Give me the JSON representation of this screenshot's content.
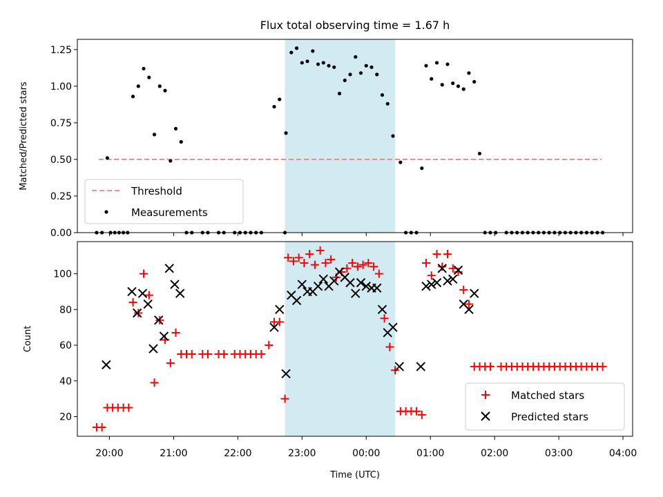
{
  "chart_data": [
    {
      "type": "scatter",
      "title": "Flux total observing time = 1.67 h",
      "xlabel": "",
      "ylabel": "Matched/Predicted stars",
      "xlim": [
        19.5,
        4.15
      ],
      "ylim": [
        0,
        1.32
      ],
      "yticks": [
        {
          "value": 0.0,
          "label": "0.00"
        },
        {
          "value": 0.25,
          "label": "0.25"
        },
        {
          "value": 0.5,
          "label": "0.50"
        },
        {
          "value": 0.75,
          "label": "0.75"
        },
        {
          "value": 1.0,
          "label": "1.00"
        },
        {
          "value": 1.25,
          "label": "1.25"
        }
      ],
      "shaded_span": {
        "start": "22:44",
        "end": "00:27",
        "color": "#add8e6"
      },
      "threshold": {
        "name": "Threshold",
        "value": 0.5,
        "from": "19:50",
        "to": "03:40",
        "color": "#ff7f7f"
      },
      "legend": {
        "placement": "lower left",
        "entries": [
          "Threshold",
          "Measurements"
        ]
      },
      "series": [
        {
          "name": "Measurements",
          "color": "#000000",
          "points": [
            [
              "19:48",
              0
            ],
            [
              "19:53",
              0
            ],
            [
              "19:58",
              0.51
            ],
            [
              "20:01",
              0
            ],
            [
              "20:05",
              0
            ],
            [
              "20:09",
              0
            ],
            [
              "20:13",
              0
            ],
            [
              "20:17",
              0
            ],
            [
              "20:22",
              0.93
            ],
            [
              "20:27",
              1.0
            ],
            [
              "20:32",
              1.12
            ],
            [
              "20:37",
              1.06
            ],
            [
              "20:42",
              0.67
            ],
            [
              "20:47",
              1.0
            ],
            [
              "20:52",
              0.97
            ],
            [
              "20:57",
              0.49
            ],
            [
              "21:02",
              0.71
            ],
            [
              "21:07",
              0.62
            ],
            [
              "21:12",
              0
            ],
            [
              "21:17",
              0
            ],
            [
              "21:27",
              0
            ],
            [
              "21:32",
              0
            ],
            [
              "21:42",
              0
            ],
            [
              "21:47",
              0
            ],
            [
              "21:57",
              0
            ],
            [
              "22:02",
              0
            ],
            [
              "22:07",
              0
            ],
            [
              "22:12",
              0
            ],
            [
              "22:17",
              0
            ],
            [
              "22:22",
              0
            ],
            [
              "22:34",
              0.86
            ],
            [
              "22:39",
              0.91
            ],
            [
              "22:44",
              0
            ],
            [
              "22:45",
              0.68
            ],
            [
              "22:50",
              1.23
            ],
            [
              "22:55",
              1.26
            ],
            [
              "23:00",
              1.16
            ],
            [
              "23:05",
              1.17
            ],
            [
              "23:10",
              1.24
            ],
            [
              "23:15",
              1.15
            ],
            [
              "23:20",
              1.16
            ],
            [
              "23:25",
              1.14
            ],
            [
              "23:30",
              1.13
            ],
            [
              "23:35",
              0.95
            ],
            [
              "23:40",
              1.04
            ],
            [
              "23:45",
              1.08
            ],
            [
              "23:50",
              1.2
            ],
            [
              "23:55",
              1.09
            ],
            [
              "00:00",
              1.14
            ],
            [
              "00:05",
              1.13
            ],
            [
              "00:10",
              1.08
            ],
            [
              "00:15",
              0.94
            ],
            [
              "00:20",
              0.88
            ],
            [
              "00:25",
              0.66
            ],
            [
              "00:32",
              0.48
            ],
            [
              "00:37",
              0
            ],
            [
              "00:42",
              0
            ],
            [
              "00:47",
              0
            ],
            [
              "00:52",
              0.44
            ],
            [
              "00:56",
              1.14
            ],
            [
              "01:01",
              1.05
            ],
            [
              "01:06",
              1.16
            ],
            [
              "01:11",
              1.01
            ],
            [
              "01:16",
              1.15
            ],
            [
              "01:21",
              1.02
            ],
            [
              "01:26",
              1.0
            ],
            [
              "01:31",
              0.98
            ],
            [
              "01:36",
              1.09
            ],
            [
              "01:41",
              1.03
            ],
            [
              "01:46",
              0.54
            ],
            [
              "01:51",
              0
            ],
            [
              "01:56",
              0
            ],
            [
              "02:01",
              0
            ],
            [
              "02:11",
              0
            ],
            [
              "02:16",
              0
            ],
            [
              "02:21",
              0
            ],
            [
              "02:26",
              0
            ],
            [
              "02:31",
              0
            ],
            [
              "02:36",
              0
            ],
            [
              "02:41",
              0
            ],
            [
              "02:46",
              0
            ],
            [
              "02:51",
              0
            ],
            [
              "02:56",
              0
            ],
            [
              "03:01",
              0
            ],
            [
              "03:06",
              0
            ],
            [
              "03:11",
              0
            ],
            [
              "03:16",
              0
            ],
            [
              "03:21",
              0
            ],
            [
              "03:26",
              0
            ],
            [
              "03:31",
              0
            ],
            [
              "03:36",
              0
            ],
            [
              "03:41",
              0
            ]
          ]
        }
      ]
    },
    {
      "type": "scatter",
      "title": "",
      "xlabel": "Time (UTC)",
      "ylabel": "Count",
      "xlim": [
        19.5,
        4.15
      ],
      "ylim": [
        9,
        118
      ],
      "yticks": [
        {
          "value": 20,
          "label": "20"
        },
        {
          "value": 40,
          "label": "40"
        },
        {
          "value": 60,
          "label": "60"
        },
        {
          "value": 80,
          "label": "80"
        },
        {
          "value": 100,
          "label": "100"
        }
      ],
      "xticks": [
        {
          "value": "20:00",
          "label": "20:00"
        },
        {
          "value": "21:00",
          "label": "21:00"
        },
        {
          "value": "22:00",
          "label": "22:00"
        },
        {
          "value": "23:00",
          "label": "23:00"
        },
        {
          "value": "00:00",
          "label": "00:00"
        },
        {
          "value": "01:00",
          "label": "01:00"
        },
        {
          "value": "02:00",
          "label": "02:00"
        },
        {
          "value": "03:00",
          "label": "03:00"
        },
        {
          "value": "04:00",
          "label": "04:00"
        }
      ],
      "shaded_span": {
        "start": "22:44",
        "end": "00:27",
        "color": "#add8e6"
      },
      "legend": {
        "placement": "lower right",
        "entries": [
          "Matched stars",
          "Predicted stars"
        ]
      },
      "series": [
        {
          "name": "Matched stars",
          "marker": "plus",
          "color": "#ff0000",
          "points": [
            [
              "19:48",
              14
            ],
            [
              "19:53",
              14
            ],
            [
              "19:58",
              25
            ],
            [
              "20:03",
              25
            ],
            [
              "20:08",
              25
            ],
            [
              "20:13",
              25
            ],
            [
              "20:18",
              25
            ],
            [
              "20:22",
              84
            ],
            [
              "20:27",
              78
            ],
            [
              "20:32",
              100
            ],
            [
              "20:37",
              88
            ],
            [
              "20:42",
              39
            ],
            [
              "20:47",
              74
            ],
            [
              "20:52",
              63
            ],
            [
              "20:57",
              50
            ],
            [
              "21:02",
              67
            ],
            [
              "21:07",
              55
            ],
            [
              "21:12",
              55
            ],
            [
              "21:17",
              55
            ],
            [
              "21:27",
              55
            ],
            [
              "21:32",
              55
            ],
            [
              "21:42",
              55
            ],
            [
              "21:47",
              55
            ],
            [
              "21:57",
              55
            ],
            [
              "22:02",
              55
            ],
            [
              "22:07",
              55
            ],
            [
              "22:12",
              55
            ],
            [
              "22:17",
              55
            ],
            [
              "22:22",
              55
            ],
            [
              "22:29",
              60
            ],
            [
              "22:34",
              73
            ],
            [
              "22:39",
              73
            ],
            [
              "22:44",
              30
            ],
            [
              "22:47",
              109
            ],
            [
              "22:52",
              107
            ],
            [
              "22:57",
              109
            ],
            [
              "23:02",
              106
            ],
            [
              "23:07",
              111
            ],
            [
              "23:12",
              105
            ],
            [
              "23:17",
              113
            ],
            [
              "23:22",
              106
            ],
            [
              "23:27",
              108
            ],
            [
              "23:32",
              98
            ],
            [
              "23:37",
              101
            ],
            [
              "23:42",
              103
            ],
            [
              "23:47",
              106
            ],
            [
              "23:52",
              104
            ],
            [
              "23:57",
              105
            ],
            [
              "00:02",
              106
            ],
            [
              "00:07",
              104
            ],
            [
              "00:12",
              100
            ],
            [
              "00:17",
              75
            ],
            [
              "00:22",
              59
            ],
            [
              "00:27",
              46
            ],
            [
              "00:32",
              23
            ],
            [
              "00:37",
              23
            ],
            [
              "00:42",
              23
            ],
            [
              "00:47",
              23
            ],
            [
              "00:52",
              21
            ],
            [
              "00:56",
              106
            ],
            [
              "01:01",
              99
            ],
            [
              "01:06",
              111
            ],
            [
              "01:11",
              104
            ],
            [
              "01:16",
              111
            ],
            [
              "01:21",
              103
            ],
            [
              "01:26",
              101
            ],
            [
              "01:31",
              91
            ],
            [
              "01:36",
              83
            ],
            [
              "01:41",
              48
            ],
            [
              "01:46",
              48
            ],
            [
              "01:51",
              48
            ],
            [
              "01:56",
              48
            ],
            [
              "02:06",
              48
            ],
            [
              "02:11",
              48
            ],
            [
              "02:16",
              48
            ],
            [
              "02:21",
              48
            ],
            [
              "02:26",
              48
            ],
            [
              "02:31",
              48
            ],
            [
              "02:36",
              48
            ],
            [
              "02:41",
              48
            ],
            [
              "02:46",
              48
            ],
            [
              "02:51",
              48
            ],
            [
              "02:56",
              48
            ],
            [
              "03:01",
              48
            ],
            [
              "03:06",
              48
            ],
            [
              "03:11",
              48
            ],
            [
              "03:16",
              48
            ],
            [
              "03:21",
              48
            ],
            [
              "03:26",
              48
            ],
            [
              "03:31",
              48
            ],
            [
              "03:36",
              48
            ],
            [
              "03:41",
              48
            ]
          ]
        },
        {
          "name": "Predicted stars",
          "marker": "x",
          "color": "#000000",
          "points": [
            [
              "19:57",
              49
            ],
            [
              "20:21",
              90
            ],
            [
              "20:26",
              78
            ],
            [
              "20:31",
              89
            ],
            [
              "20:36",
              83
            ],
            [
              "20:41",
              58
            ],
            [
              "20:46",
              74
            ],
            [
              "20:51",
              65
            ],
            [
              "20:56",
              103
            ],
            [
              "21:01",
              94
            ],
            [
              "21:06",
              89
            ],
            [
              "22:34",
              70
            ],
            [
              "22:39",
              80
            ],
            [
              "22:45",
              44
            ],
            [
              "22:50",
              88
            ],
            [
              "22:55",
              85
            ],
            [
              "23:00",
              94
            ],
            [
              "23:05",
              90
            ],
            [
              "23:10",
              90
            ],
            [
              "23:15",
              93
            ],
            [
              "23:20",
              97
            ],
            [
              "23:25",
              93
            ],
            [
              "23:30",
              96
            ],
            [
              "23:35",
              101
            ],
            [
              "23:40",
              98
            ],
            [
              "23:45",
              95
            ],
            [
              "23:50",
              89
            ],
            [
              "23:55",
              95
            ],
            [
              "00:00",
              93
            ],
            [
              "00:05",
              92
            ],
            [
              "00:10",
              92
            ],
            [
              "00:15",
              80
            ],
            [
              "00:20",
              67
            ],
            [
              "00:25",
              70
            ],
            [
              "00:31",
              48
            ],
            [
              "00:51",
              48
            ],
            [
              "00:56",
              93
            ],
            [
              "01:01",
              94
            ],
            [
              "01:06",
              95
            ],
            [
              "01:11",
              103
            ],
            [
              "01:16",
              96
            ],
            [
              "01:21",
              97
            ],
            [
              "01:26",
              102
            ],
            [
              "01:31",
              83
            ],
            [
              "01:36",
              80
            ],
            [
              "01:41",
              89
            ]
          ]
        }
      ]
    }
  ]
}
